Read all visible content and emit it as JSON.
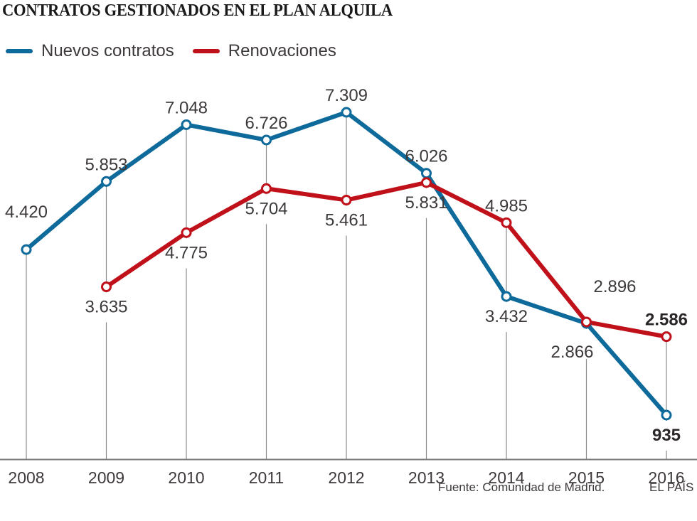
{
  "chart_data": {
    "type": "line",
    "title": "CONTRATOS GESTIONADOS EN EL PLAN ALQUILA",
    "xlabel": "",
    "ylabel": "",
    "ylim": [
      0,
      7309
    ],
    "grid": "vertical drop lines per year",
    "legend_position": "top-left",
    "categories": [
      "2008",
      "2009",
      "2010",
      "2011",
      "2012",
      "2013",
      "2014",
      "2015",
      "2016"
    ],
    "series": [
      {
        "name": "Nuevos contratos",
        "color": "#0e6a9a",
        "values": [
          4420,
          5853,
          7048,
          6726,
          7309,
          6026,
          3432,
          2866,
          935
        ],
        "labels": [
          "4.420",
          "5.853",
          "7.048",
          "6.726",
          "7.309",
          "6.026",
          "3.432",
          "2.866",
          "935"
        ],
        "label_pos": [
          "above",
          "above",
          "above",
          "above",
          "above",
          "above",
          "below",
          "below",
          "below"
        ],
        "bold_last": true
      },
      {
        "name": "Renovaciones",
        "color": "#c0101a",
        "values": [
          null,
          3635,
          4775,
          5704,
          5461,
          5831,
          4985,
          2896,
          2586
        ],
        "labels": [
          null,
          "3.635",
          "4.775",
          "5.704",
          "5.461",
          "5.831",
          "4.985",
          "2.896",
          "2.586"
        ],
        "label_pos": [
          null,
          "below",
          "below",
          "below",
          "below",
          "below",
          "above",
          "above",
          "above"
        ],
        "bold_last": true
      }
    ]
  },
  "footer": {
    "source": "Fuente: Comunidad de Madrid.",
    "brand": "EL PAÍS"
  }
}
